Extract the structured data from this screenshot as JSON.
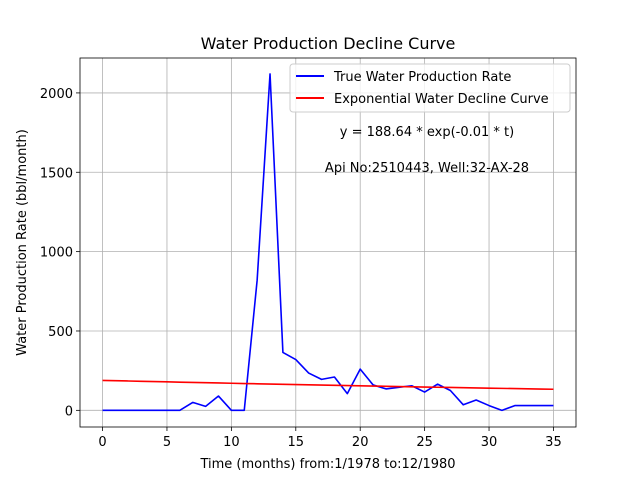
{
  "chart_data": {
    "type": "line",
    "title": "Water Production Decline Curve",
    "xlabel": "Time (months) from:1/1978 to:12/1980",
    "ylabel": "Water Production Rate (bbl/month)",
    "xlim": [
      -1.75,
      36.75
    ],
    "ylim": [
      -105,
      2220
    ],
    "xticks": [
      0,
      5,
      10,
      15,
      20,
      25,
      30,
      35
    ],
    "yticks": [
      0,
      500,
      1000,
      1500,
      2000
    ],
    "grid": true,
    "legend_position": "top-right",
    "series": [
      {
        "name": "True Water Production Rate",
        "color": "#0000ff",
        "x": [
          0,
          1,
          2,
          3,
          4,
          5,
          6,
          7,
          8,
          9,
          10,
          11,
          12,
          13,
          14,
          15,
          16,
          17,
          18,
          19,
          20,
          21,
          22,
          23,
          24,
          25,
          26,
          27,
          28,
          29,
          30,
          31,
          32,
          33,
          34,
          35
        ],
        "y": [
          0,
          0,
          0,
          0,
          0,
          0,
          0,
          50,
          25,
          90,
          0,
          0,
          820,
          2120,
          365,
          320,
          235,
          195,
          210,
          105,
          260,
          160,
          135,
          145,
          155,
          115,
          165,
          125,
          35,
          65,
          30,
          0,
          30,
          30,
          30,
          30
        ]
      },
      {
        "name": "Exponential Water Decline Curve",
        "color": "#ff0000",
        "x": [
          0,
          1,
          2,
          3,
          4,
          5,
          6,
          7,
          8,
          9,
          10,
          11,
          12,
          13,
          14,
          15,
          16,
          17,
          18,
          19,
          20,
          21,
          22,
          23,
          24,
          25,
          26,
          27,
          28,
          29,
          30,
          31,
          32,
          33,
          34,
          35
        ],
        "y": [
          188.64,
          186.76,
          184.9,
          183.06,
          181.24,
          179.44,
          177.65,
          175.88,
          174.13,
          172.4,
          170.69,
          168.99,
          167.3,
          165.64,
          163.99,
          162.36,
          160.74,
          159.14,
          157.56,
          155.99,
          154.44,
          152.9,
          151.38,
          149.87,
          148.38,
          146.9,
          145.44,
          143.99,
          142.56,
          141.14,
          139.74,
          138.35,
          136.97,
          135.61,
          134.26,
          132.92
        ]
      }
    ],
    "annotations": [
      "y = 188.64 * exp(-0.01 * t)",
      "Api No:2510443, Well:32-AX-28"
    ]
  }
}
